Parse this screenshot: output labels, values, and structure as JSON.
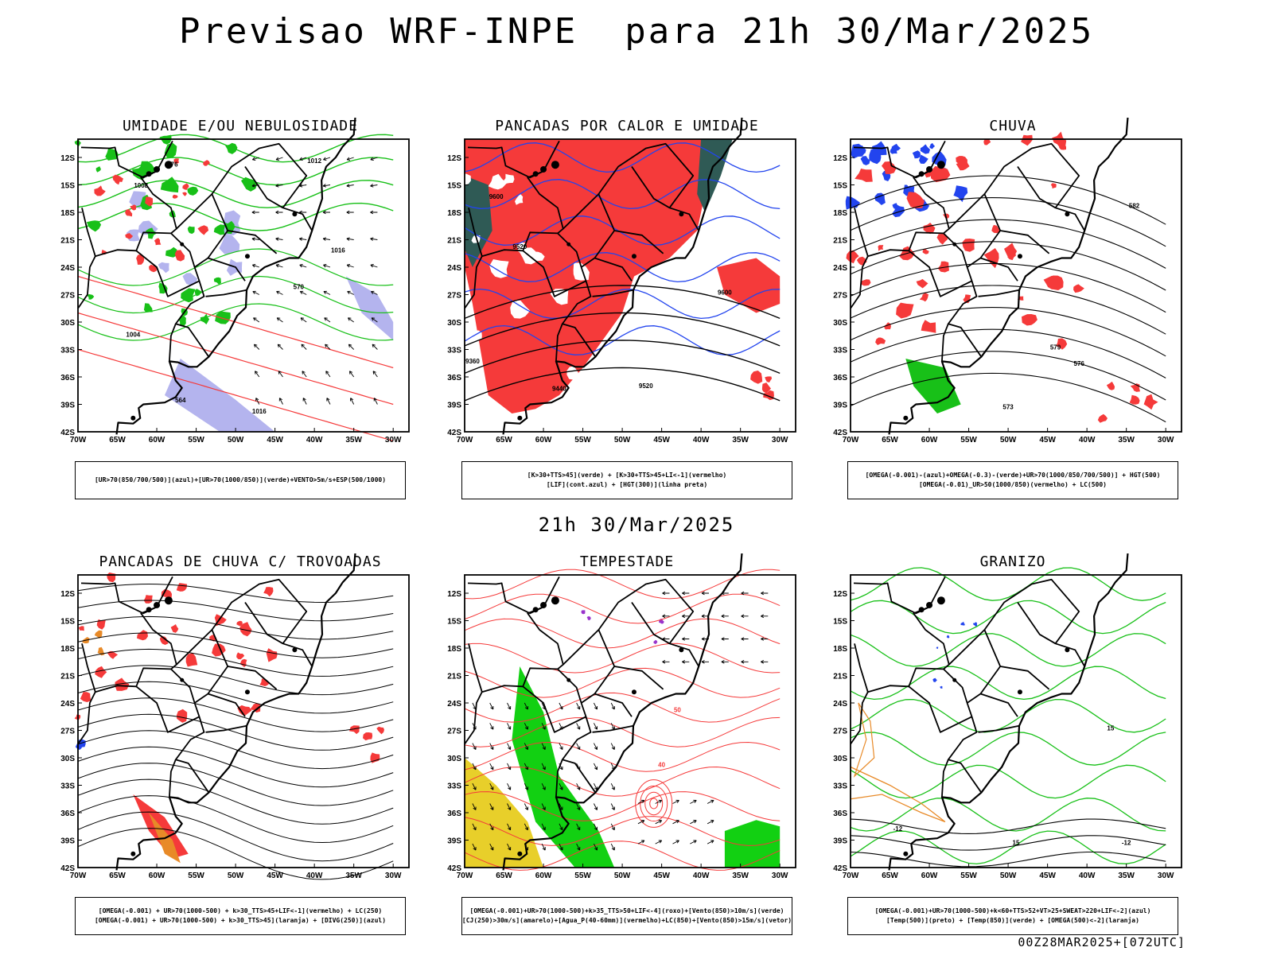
{
  "page": {
    "title": "Previsao WRF-INPE  para 21h 30/Mar/2025",
    "mid_title": "21h 30/Mar/2025",
    "footer": "00Z28MAR2025+[072UTC]"
  },
  "axes": {
    "lat_labels": [
      "12S",
      "15S",
      "18S",
      "21S",
      "24S",
      "27S",
      "30S",
      "33S",
      "36S",
      "39S",
      "42S"
    ],
    "lon_labels": [
      "70W",
      "65W",
      "60W",
      "55W",
      "50W",
      "45W",
      "40W",
      "35W",
      "30W"
    ]
  },
  "colors": {
    "red": "#f53a3a",
    "green": "#18c018",
    "blue": "#2244ee",
    "lavender": "#b4b4ee",
    "dark_teal": "#2f5a55",
    "yellow": "#e8cf2a",
    "orange": "#e88a28",
    "bright_green": "#12d012",
    "purple": "#9933cc"
  },
  "panels": [
    {
      "title": "UMIDADE E/OU NEBULOSIDADE",
      "legend": [
        "[UR>70(850/700/500)](azul)+[UR>70(1000/850)](verde)+VENTO>5m/s+ESP(500/1000)"
      ],
      "contour_labels": [
        "1008",
        "1012",
        "1016",
        "1004",
        "576",
        "570",
        "564",
        "1016"
      ]
    },
    {
      "title": "PANCADAS POR CALOR E UMIDADE",
      "legend": [
        "[K>30+TTS>45](verde) + [K>30+TTS>45+LI<-1](vermelho)",
        "[LIF](cont.azul) + [HGT(300)](linha preta)"
      ],
      "contour_labels": [
        "9600",
        "9520",
        "9440",
        "9360",
        "9600",
        "9520"
      ]
    },
    {
      "title": "CHUVA",
      "legend": [
        "[OMEGA(-0.001)-(azul)+OMEGA(-0.3)-(verde)+UR>70(1000/850/700/500)] + HGT(500)",
        "[OMEGA(-0.01)_UR>50(1000/850)(vermelho) + LC(500)"
      ],
      "contour_labels": [
        "582",
        "579",
        "576",
        "573"
      ]
    },
    {
      "title": "PANCADAS DE CHUVA C/ TROVOADAS",
      "legend": [
        "[OMEGA(-0.001) + UR>70(1000-500) + k>30_TTS>45+LIF<-1](vermelho) + LC(250)",
        "[OMEGA(-0.001) + UR>70(1000-500) + k>30_TTS>45](laranja) + [DIVG(250)](azul)"
      ],
      "contour_labels": []
    },
    {
      "title": "TEMPESTADE",
      "legend": [
        "[OMEGA(-0.001)+UR>70(1000-500)+k>35_TTS>50+LIF<-4](roxo)+[Vento(850)>10m/s](verde)",
        "[CJ(250)>30m/s](amarelo)+[Agua_P(40-60mm)](vermelho)+LC(850)+[Vento(850)>15m/s](vetor)"
      ],
      "contour_labels": [
        "40",
        "50"
      ]
    },
    {
      "title": "GRANIZO",
      "legend": [
        "[OMEGA(-0.001)+UR>70(1000-500)+k<60+TTS>52+VT>25+SWEAT>220+LIF<-2](azul)",
        "[Temp(500)](preto) + [Temp(850)](verde) + [OMEGA(500)<-2](laranja)"
      ],
      "contour_labels": [
        "-12",
        "-12",
        "15",
        "15"
      ]
    }
  ]
}
